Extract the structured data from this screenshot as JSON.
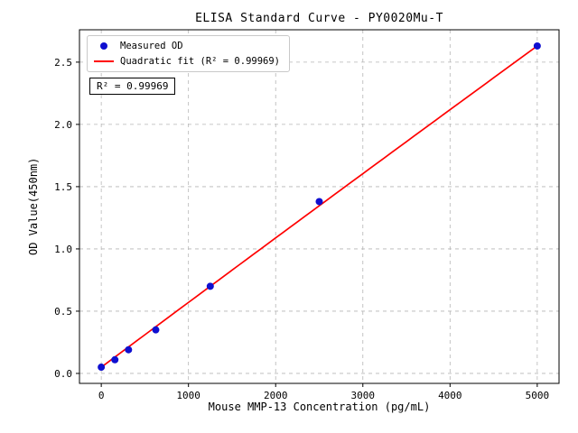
{
  "chart_data": {
    "type": "scatter",
    "title": "ELISA Standard Curve - PY0020Mu-T",
    "xlabel": "Mouse MMP-13 Concentration (pg/mL)",
    "ylabel": "OD Value(450nm)",
    "xlim": [
      -250,
      5250
    ],
    "ylim": [
      -0.08,
      2.76
    ],
    "xticks": [
      0,
      1000,
      2000,
      3000,
      4000,
      5000
    ],
    "yticks": [
      0.0,
      0.5,
      1.0,
      1.5,
      2.0,
      2.5
    ],
    "grid": true,
    "grid_color": "#b5b5b5",
    "series": [
      {
        "name": "Measured OD",
        "type": "scatter",
        "color": "#0f0fd0",
        "x": [
          0,
          156.25,
          312.5,
          625,
          1250,
          2500,
          5000
        ],
        "y": [
          0.05,
          0.11,
          0.19,
          0.35,
          0.7,
          1.38,
          2.63
        ]
      }
    ],
    "fit": {
      "name": "Quadratic fit",
      "type": "quadratic",
      "color": "#ff0000",
      "coefficients": {
        "a": -1.0667e-09,
        "b": 0.0005213,
        "c": 0.05
      },
      "x_range": [
        0,
        5000
      ],
      "r_squared": 0.99969
    },
    "legend": {
      "position": "upper-left",
      "entries": [
        {
          "label": "Measured OD",
          "marker": "dot",
          "color": "#0f0fd0"
        },
        {
          "label": "Quadratic fit (R² = 0.99969)",
          "marker": "line",
          "color": "#ff0000"
        }
      ]
    },
    "annotation": "R² = 0.99969"
  }
}
